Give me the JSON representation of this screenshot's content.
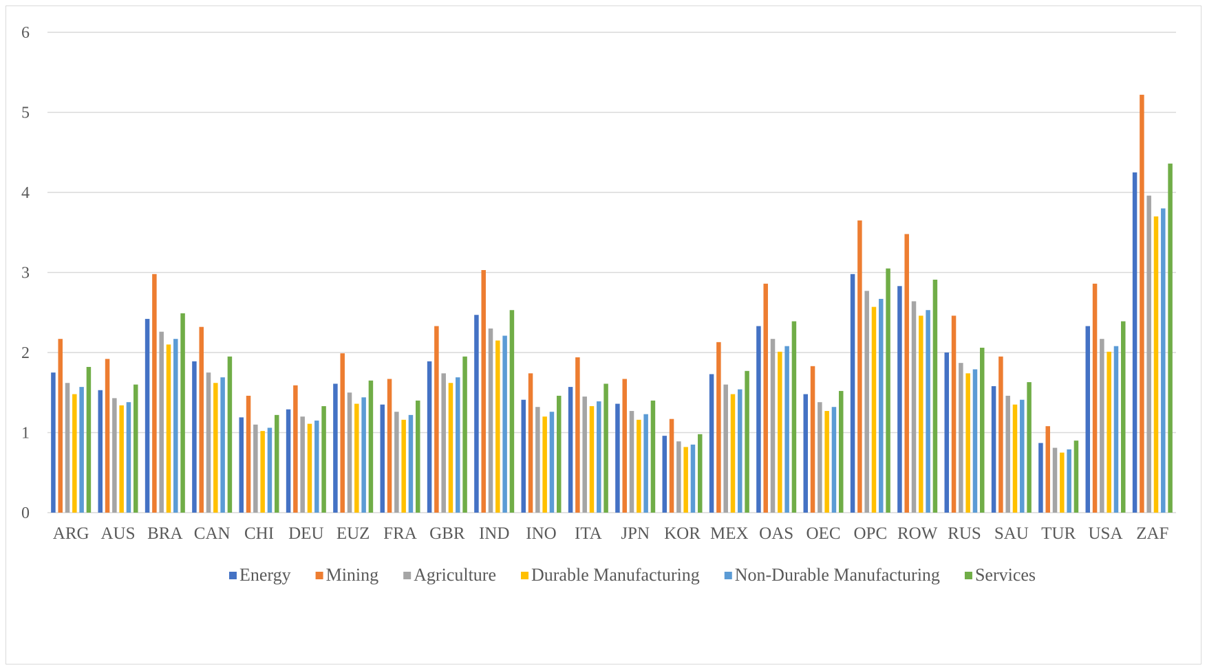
{
  "chart_data": {
    "type": "bar",
    "title": "",
    "xlabel": "",
    "ylabel": "",
    "ylim": [
      0,
      6
    ],
    "yticks": [
      0,
      1,
      2,
      3,
      4,
      5,
      6
    ],
    "grid": true,
    "legend_position": "bottom",
    "categories": [
      "ARG",
      "AUS",
      "BRA",
      "CAN",
      "CHI",
      "DEU",
      "EUZ",
      "FRA",
      "GBR",
      "IND",
      "INO",
      "ITA",
      "JPN",
      "KOR",
      "MEX",
      "OAS",
      "OEC",
      "OPC",
      "ROW",
      "RUS",
      "SAU",
      "TUR",
      "USA",
      "ZAF"
    ],
    "series": [
      {
        "name": "Energy",
        "color": "#4472c4",
        "values": [
          1.75,
          1.53,
          2.42,
          1.89,
          1.19,
          1.29,
          1.61,
          1.35,
          1.89,
          2.47,
          1.41,
          1.57,
          1.36,
          0.96,
          1.73,
          2.33,
          1.48,
          2.98,
          2.83,
          2.0,
          1.58,
          0.87,
          2.33,
          4.25
        ]
      },
      {
        "name": "Mining",
        "color": "#ed7d31",
        "values": [
          2.17,
          1.92,
          2.98,
          2.32,
          1.46,
          1.59,
          1.99,
          1.67,
          2.33,
          3.03,
          1.74,
          1.94,
          1.67,
          1.17,
          2.13,
          2.86,
          1.83,
          3.65,
          3.48,
          2.46,
          1.95,
          1.08,
          2.86,
          5.22
        ]
      },
      {
        "name": "Agriculture",
        "color": "#a5a5a5",
        "values": [
          1.62,
          1.43,
          2.26,
          1.75,
          1.1,
          1.2,
          1.5,
          1.26,
          1.74,
          2.3,
          1.32,
          1.45,
          1.27,
          0.89,
          1.6,
          2.17,
          1.38,
          2.77,
          2.64,
          1.87,
          1.46,
          0.81,
          2.17,
          3.96
        ]
      },
      {
        "name": "Durable Manufacturing",
        "color": "#ffc000",
        "values": [
          1.48,
          1.34,
          2.1,
          1.62,
          1.02,
          1.11,
          1.36,
          1.16,
          1.62,
          2.15,
          1.2,
          1.33,
          1.16,
          0.82,
          1.48,
          2.01,
          1.27,
          2.57,
          2.46,
          1.74,
          1.35,
          0.75,
          2.01,
          3.7
        ]
      },
      {
        "name": "Non-Durable Manufacturing",
        "color": "#5b9bd5",
        "values": [
          1.57,
          1.38,
          2.17,
          1.69,
          1.06,
          1.15,
          1.44,
          1.22,
          1.69,
          2.21,
          1.26,
          1.39,
          1.23,
          0.85,
          1.54,
          2.08,
          1.32,
          2.67,
          2.53,
          1.79,
          1.41,
          0.79,
          2.08,
          3.8
        ]
      },
      {
        "name": "Services",
        "color": "#70ad47",
        "values": [
          1.82,
          1.6,
          2.49,
          1.95,
          1.22,
          1.33,
          1.65,
          1.4,
          1.95,
          2.53,
          1.46,
          1.61,
          1.4,
          0.98,
          1.77,
          2.39,
          1.52,
          3.05,
          2.91,
          2.06,
          1.63,
          0.9,
          2.39,
          4.36
        ]
      }
    ]
  }
}
